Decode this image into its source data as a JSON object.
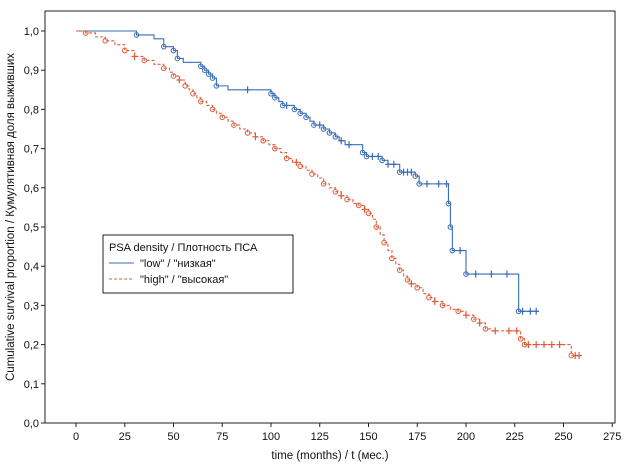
{
  "chart_data": {
    "type": "line",
    "subtype": "kaplan-meier survival curve",
    "xlabel": "time (months) / t (мес.)",
    "ylabel": "Cumulative survival proportion / Кумулятивная доля выживших",
    "xlim": [
      -20,
      280
    ],
    "ylim": [
      0,
      1.05
    ],
    "x_ticks": [
      0,
      25,
      50,
      75,
      100,
      125,
      150,
      175,
      200,
      225,
      250,
      275
    ],
    "y_ticks": [
      0.0,
      0.1,
      0.2,
      0.3,
      0.4,
      0.5,
      0.6,
      0.7,
      0.8,
      0.9,
      1.0
    ],
    "x_tick_labels": [
      "0",
      "25",
      "50",
      "75",
      "100",
      "125",
      "150",
      "175",
      "200",
      "225",
      "250",
      "275"
    ],
    "y_tick_labels": [
      "0,0",
      "0,1",
      "0,2",
      "0,3",
      "0,4",
      "0,5",
      "0,6",
      "0,7",
      "0,8",
      "0,9",
      "1,0"
    ],
    "grid": false,
    "legend": {
      "title": "PSA density / Плотность ПСА",
      "placement": "center-left"
    },
    "series": [
      {
        "name": "\"low\" / \"низкая\"",
        "color": "#3a6db5",
        "line_style": "solid",
        "steps": [
          [
            0,
            1.0
          ],
          [
            31,
            1.0
          ],
          [
            31,
            0.99
          ],
          [
            40,
            0.99
          ],
          [
            40,
            0.98
          ],
          [
            45,
            0.96
          ],
          [
            50,
            0.95
          ],
          [
            52,
            0.93
          ],
          [
            55,
            0.92
          ],
          [
            62,
            0.92
          ],
          [
            64,
            0.91
          ],
          [
            66,
            0.9
          ],
          [
            68,
            0.89
          ],
          [
            70,
            0.88
          ],
          [
            72,
            0.86
          ],
          [
            75,
            0.86
          ],
          [
            78,
            0.85
          ],
          [
            85,
            0.85
          ],
          [
            88,
            0.85
          ],
          [
            100,
            0.85
          ],
          [
            100,
            0.84
          ],
          [
            102,
            0.83
          ],
          [
            104,
            0.82
          ],
          [
            106,
            0.81
          ],
          [
            110,
            0.81
          ],
          [
            112,
            0.8
          ],
          [
            115,
            0.79
          ],
          [
            118,
            0.78
          ],
          [
            120,
            0.77
          ],
          [
            122,
            0.76
          ],
          [
            125,
            0.76
          ],
          [
            127,
            0.75
          ],
          [
            130,
            0.74
          ],
          [
            133,
            0.73
          ],
          [
            135,
            0.72
          ],
          [
            138,
            0.71
          ],
          [
            142,
            0.71
          ],
          [
            147,
            0.69
          ],
          [
            149,
            0.68
          ],
          [
            155,
            0.68
          ],
          [
            157,
            0.67
          ],
          [
            160,
            0.66
          ],
          [
            165,
            0.66
          ],
          [
            166,
            0.64
          ],
          [
            172,
            0.64
          ],
          [
            174,
            0.63
          ],
          [
            176,
            0.61
          ],
          [
            190,
            0.61
          ],
          [
            191,
            0.56
          ],
          [
            192,
            0.5
          ],
          [
            193,
            0.44
          ],
          [
            199,
            0.44
          ],
          [
            200,
            0.38
          ],
          [
            226,
            0.38
          ],
          [
            227,
            0.285
          ],
          [
            237,
            0.285
          ]
        ],
        "event_marks": [
          [
            31,
            0.99
          ],
          [
            45,
            0.96
          ],
          [
            50,
            0.95
          ],
          [
            52,
            0.93
          ],
          [
            64,
            0.91
          ],
          [
            66,
            0.9
          ],
          [
            68,
            0.89
          ],
          [
            70,
            0.88
          ],
          [
            72,
            0.86
          ],
          [
            100,
            0.84
          ],
          [
            102,
            0.83
          ],
          [
            106,
            0.81
          ],
          [
            112,
            0.8
          ],
          [
            115,
            0.79
          ],
          [
            118,
            0.78
          ],
          [
            122,
            0.76
          ],
          [
            127,
            0.75
          ],
          [
            130,
            0.74
          ],
          [
            133,
            0.73
          ],
          [
            147,
            0.69
          ],
          [
            149,
            0.68
          ],
          [
            157,
            0.67
          ],
          [
            166,
            0.64
          ],
          [
            174,
            0.63
          ],
          [
            176,
            0.61
          ],
          [
            191,
            0.56
          ],
          [
            192,
            0.5
          ],
          [
            193,
            0.44
          ],
          [
            200,
            0.38
          ],
          [
            227,
            0.285
          ]
        ],
        "censor_marks": [
          [
            88,
            0.85
          ],
          [
            108,
            0.81
          ],
          [
            125,
            0.76
          ],
          [
            136,
            0.72
          ],
          [
            140,
            0.71
          ],
          [
            152,
            0.68
          ],
          [
            155,
            0.68
          ],
          [
            160,
            0.66
          ],
          [
            163,
            0.66
          ],
          [
            168,
            0.64
          ],
          [
            170,
            0.64
          ],
          [
            172,
            0.64
          ],
          [
            180,
            0.61
          ],
          [
            186,
            0.61
          ],
          [
            190,
            0.61
          ],
          [
            197,
            0.44
          ],
          [
            205,
            0.38
          ],
          [
            213,
            0.38
          ],
          [
            221,
            0.38
          ],
          [
            229,
            0.285
          ],
          [
            233,
            0.285
          ],
          [
            236,
            0.285
          ]
        ]
      },
      {
        "name": "\"high\" / \"высокая\"",
        "color": "#e05a3a",
        "line_style": "dashed",
        "steps": [
          [
            0,
            1.0
          ],
          [
            5,
            0.995
          ],
          [
            10,
            0.985
          ],
          [
            15,
            0.975
          ],
          [
            20,
            0.965
          ],
          [
            25,
            0.95
          ],
          [
            30,
            0.935
          ],
          [
            35,
            0.925
          ],
          [
            40,
            0.915
          ],
          [
            45,
            0.905
          ],
          [
            48,
            0.895
          ],
          [
            50,
            0.885
          ],
          [
            53,
            0.875
          ],
          [
            56,
            0.86
          ],
          [
            58,
            0.85
          ],
          [
            60,
            0.84
          ],
          [
            62,
            0.83
          ],
          [
            64,
            0.82
          ],
          [
            67,
            0.81
          ],
          [
            70,
            0.8
          ],
          [
            72,
            0.79
          ],
          [
            75,
            0.78
          ],
          [
            78,
            0.77
          ],
          [
            81,
            0.76
          ],
          [
            84,
            0.75
          ],
          [
            88,
            0.74
          ],
          [
            92,
            0.73
          ],
          [
            96,
            0.72
          ],
          [
            99,
            0.71
          ],
          [
            102,
            0.7
          ],
          [
            105,
            0.69
          ],
          [
            108,
            0.675
          ],
          [
            111,
            0.665
          ],
          [
            115,
            0.655
          ],
          [
            118,
            0.645
          ],
          [
            121,
            0.635
          ],
          [
            124,
            0.625
          ],
          [
            127,
            0.61
          ],
          [
            130,
            0.6
          ],
          [
            133,
            0.59
          ],
          [
            136,
            0.58
          ],
          [
            139,
            0.57
          ],
          [
            142,
            0.56
          ],
          [
            145,
            0.555
          ],
          [
            148,
            0.545
          ],
          [
            150,
            0.535
          ],
          [
            152,
            0.52
          ],
          [
            154,
            0.5
          ],
          [
            156,
            0.48
          ],
          [
            158,
            0.46
          ],
          [
            160,
            0.44
          ],
          [
            162,
            0.42
          ],
          [
            164,
            0.405
          ],
          [
            166,
            0.39
          ],
          [
            168,
            0.375
          ],
          [
            170,
            0.365
          ],
          [
            172,
            0.355
          ],
          [
            175,
            0.345
          ],
          [
            178,
            0.33
          ],
          [
            181,
            0.32
          ],
          [
            184,
            0.31
          ],
          [
            188,
            0.3
          ],
          [
            192,
            0.29
          ],
          [
            196,
            0.285
          ],
          [
            200,
            0.275
          ],
          [
            204,
            0.265
          ],
          [
            207,
            0.255
          ],
          [
            210,
            0.24
          ],
          [
            213,
            0.235
          ],
          [
            217,
            0.235
          ],
          [
            222,
            0.235
          ],
          [
            226,
            0.235
          ],
          [
            228,
            0.215
          ],
          [
            230,
            0.2
          ],
          [
            240,
            0.2
          ],
          [
            245,
            0.2
          ],
          [
            253,
            0.2
          ],
          [
            254,
            0.172
          ],
          [
            258,
            0.172
          ]
        ],
        "event_marks": [
          [
            5,
            0.995
          ],
          [
            15,
            0.975
          ],
          [
            25,
            0.95
          ],
          [
            35,
            0.925
          ],
          [
            45,
            0.905
          ],
          [
            50,
            0.885
          ],
          [
            56,
            0.86
          ],
          [
            60,
            0.84
          ],
          [
            64,
            0.82
          ],
          [
            70,
            0.8
          ],
          [
            75,
            0.78
          ],
          [
            81,
            0.76
          ],
          [
            88,
            0.74
          ],
          [
            96,
            0.72
          ],
          [
            102,
            0.7
          ],
          [
            108,
            0.675
          ],
          [
            115,
            0.655
          ],
          [
            121,
            0.635
          ],
          [
            127,
            0.61
          ],
          [
            133,
            0.59
          ],
          [
            139,
            0.57
          ],
          [
            145,
            0.555
          ],
          [
            150,
            0.535
          ],
          [
            154,
            0.5
          ],
          [
            158,
            0.46
          ],
          [
            162,
            0.42
          ],
          [
            166,
            0.39
          ],
          [
            170,
            0.365
          ],
          [
            175,
            0.345
          ],
          [
            181,
            0.32
          ],
          [
            188,
            0.3
          ],
          [
            196,
            0.285
          ],
          [
            204,
            0.265
          ],
          [
            210,
            0.24
          ],
          [
            228,
            0.215
          ],
          [
            230,
            0.2
          ],
          [
            254,
            0.172
          ]
        ],
        "censor_marks": [
          [
            30,
            0.935
          ],
          [
            53,
            0.875
          ],
          [
            92,
            0.73
          ],
          [
            113,
            0.665
          ],
          [
            136,
            0.58
          ],
          [
            148,
            0.545
          ],
          [
            172,
            0.355
          ],
          [
            184,
            0.31
          ],
          [
            200,
            0.275
          ],
          [
            207,
            0.255
          ],
          [
            215,
            0.235
          ],
          [
            222,
            0.235
          ],
          [
            226,
            0.235
          ],
          [
            232,
            0.2
          ],
          [
            236,
            0.2
          ],
          [
            240,
            0.2
          ],
          [
            244,
            0.2
          ],
          [
            248,
            0.2
          ],
          [
            256,
            0.172
          ],
          [
            258,
            0.172
          ]
        ]
      }
    ]
  }
}
